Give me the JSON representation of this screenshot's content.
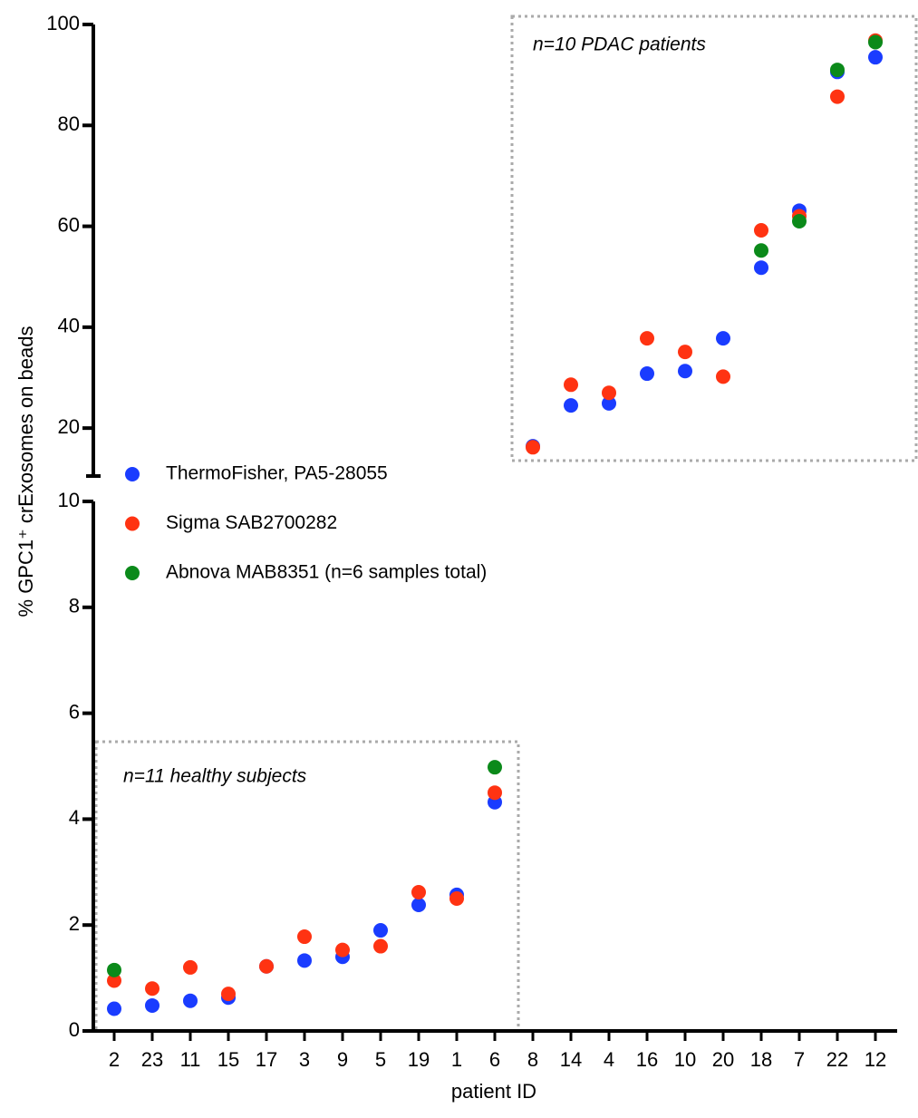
{
  "chart_data": {
    "type": "scatter",
    "categories": [
      "2",
      "23",
      "11",
      "15",
      "17",
      "3",
      "9",
      "5",
      "19",
      "1",
      "6",
      "8",
      "14",
      "4",
      "16",
      "10",
      "20",
      "18",
      "7",
      "22",
      "12"
    ],
    "x_label": "patient ID",
    "y_label": "% GPC1⁺ crExosomes  on beads",
    "y_segments": [
      {
        "ylim": [
          0,
          10
        ],
        "yticks": [
          0,
          2,
          4,
          6,
          8,
          10
        ]
      },
      {
        "ylim": [
          10.5,
          100
        ],
        "yticks": [
          20,
          40,
          60,
          80,
          100
        ]
      }
    ],
    "annotations": [
      "n=10 PDAC patients",
      "n=11 healthy subjects"
    ],
    "series": [
      {
        "name": "ThermoFisher, PA5-28055",
        "color": "#1a3cff",
        "values": [
          0.42,
          0.48,
          0.57,
          0.63,
          1.22,
          1.33,
          1.4,
          1.9,
          2.38,
          2.57,
          4.32,
          16.4,
          24.5,
          24.9,
          30.8,
          31.3,
          37.8,
          51.8,
          63.1,
          90.6,
          93.5
        ]
      },
      {
        "name": "Sigma SAB2700282",
        "color": "#ff3312",
        "values": [
          0.95,
          0.8,
          1.2,
          0.7,
          1.22,
          1.78,
          1.53,
          1.6,
          2.62,
          2.5,
          4.5,
          16.2,
          28.6,
          27.0,
          37.8,
          35.1,
          30.2,
          59.2,
          62.0,
          85.7,
          96.8
        ]
      },
      {
        "name": "Abnova MAB8351 (n=6 samples total)",
        "color": "#0b8a1a",
        "values": [
          1.15,
          null,
          null,
          null,
          null,
          null,
          null,
          null,
          null,
          null,
          4.98,
          null,
          null,
          null,
          null,
          null,
          null,
          55.2,
          61.0,
          91.0,
          96.5
        ]
      }
    ]
  }
}
